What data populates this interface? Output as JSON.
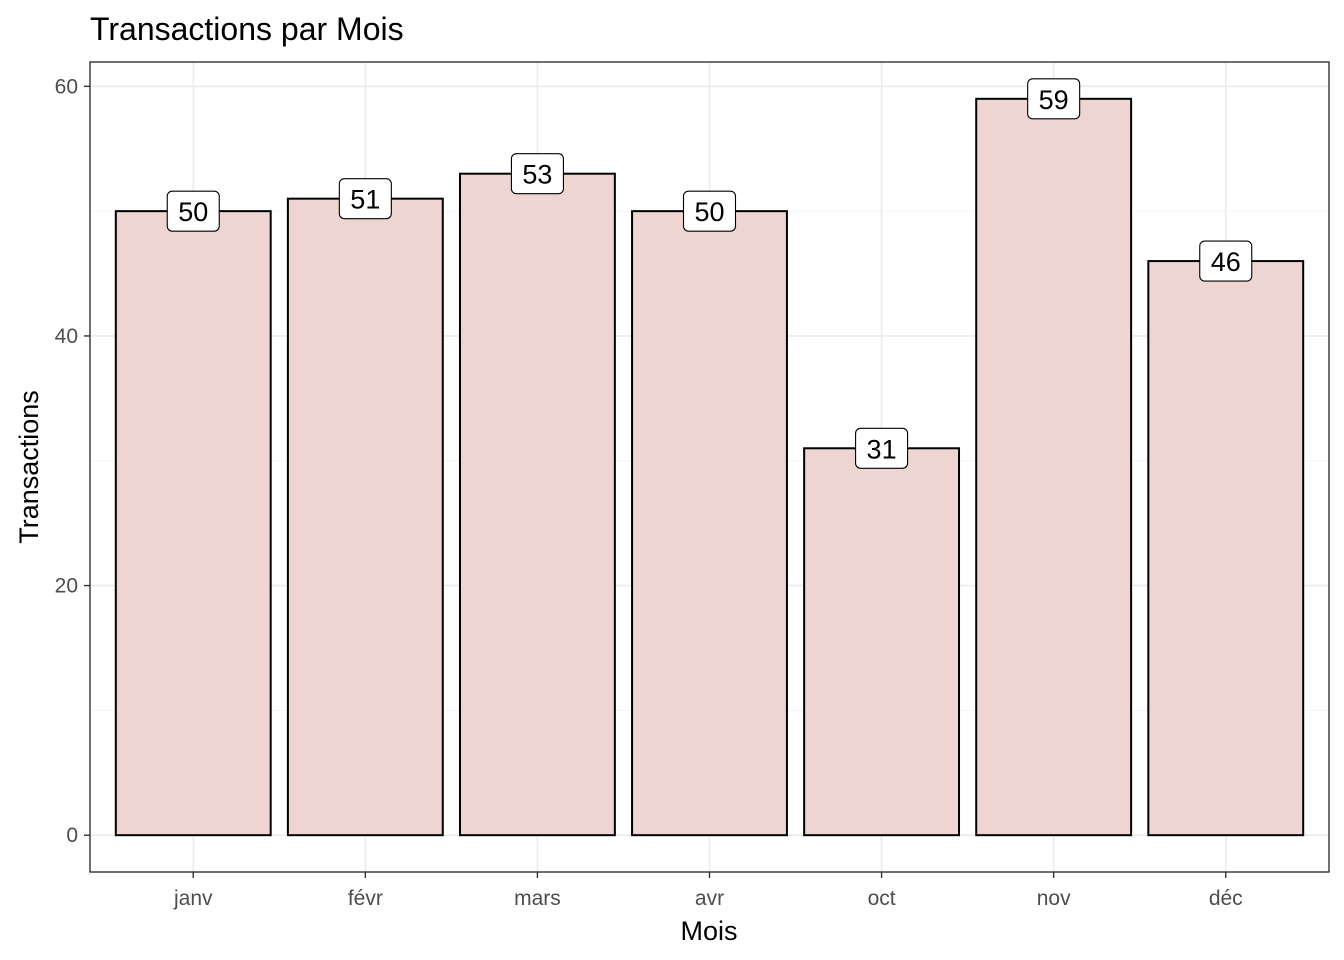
{
  "chart_data": {
    "type": "bar",
    "title": "Transactions par Mois",
    "xlabel": "Mois",
    "ylabel": "Transactions",
    "categories": [
      "janv",
      "févr",
      "mars",
      "avr",
      "oct",
      "nov",
      "déc"
    ],
    "values": [
      50,
      51,
      53,
      50,
      31,
      59,
      46
    ],
    "data_labels": [
      "50",
      "51",
      "53",
      "50",
      "31",
      "59",
      "46"
    ],
    "ylim": [
      -2.95,
      61.95
    ],
    "yticks": [
      0,
      20,
      40,
      60
    ],
    "ytick_labels": [
      "0",
      "20",
      "40",
      "60"
    ],
    "grid": true,
    "legend": "none",
    "colors": {
      "bar_fill": "#efd5d2",
      "bar_outline": "#000000",
      "grid": "#ebebeb",
      "panel_border": "#333333",
      "background": "#ffffff"
    }
  }
}
